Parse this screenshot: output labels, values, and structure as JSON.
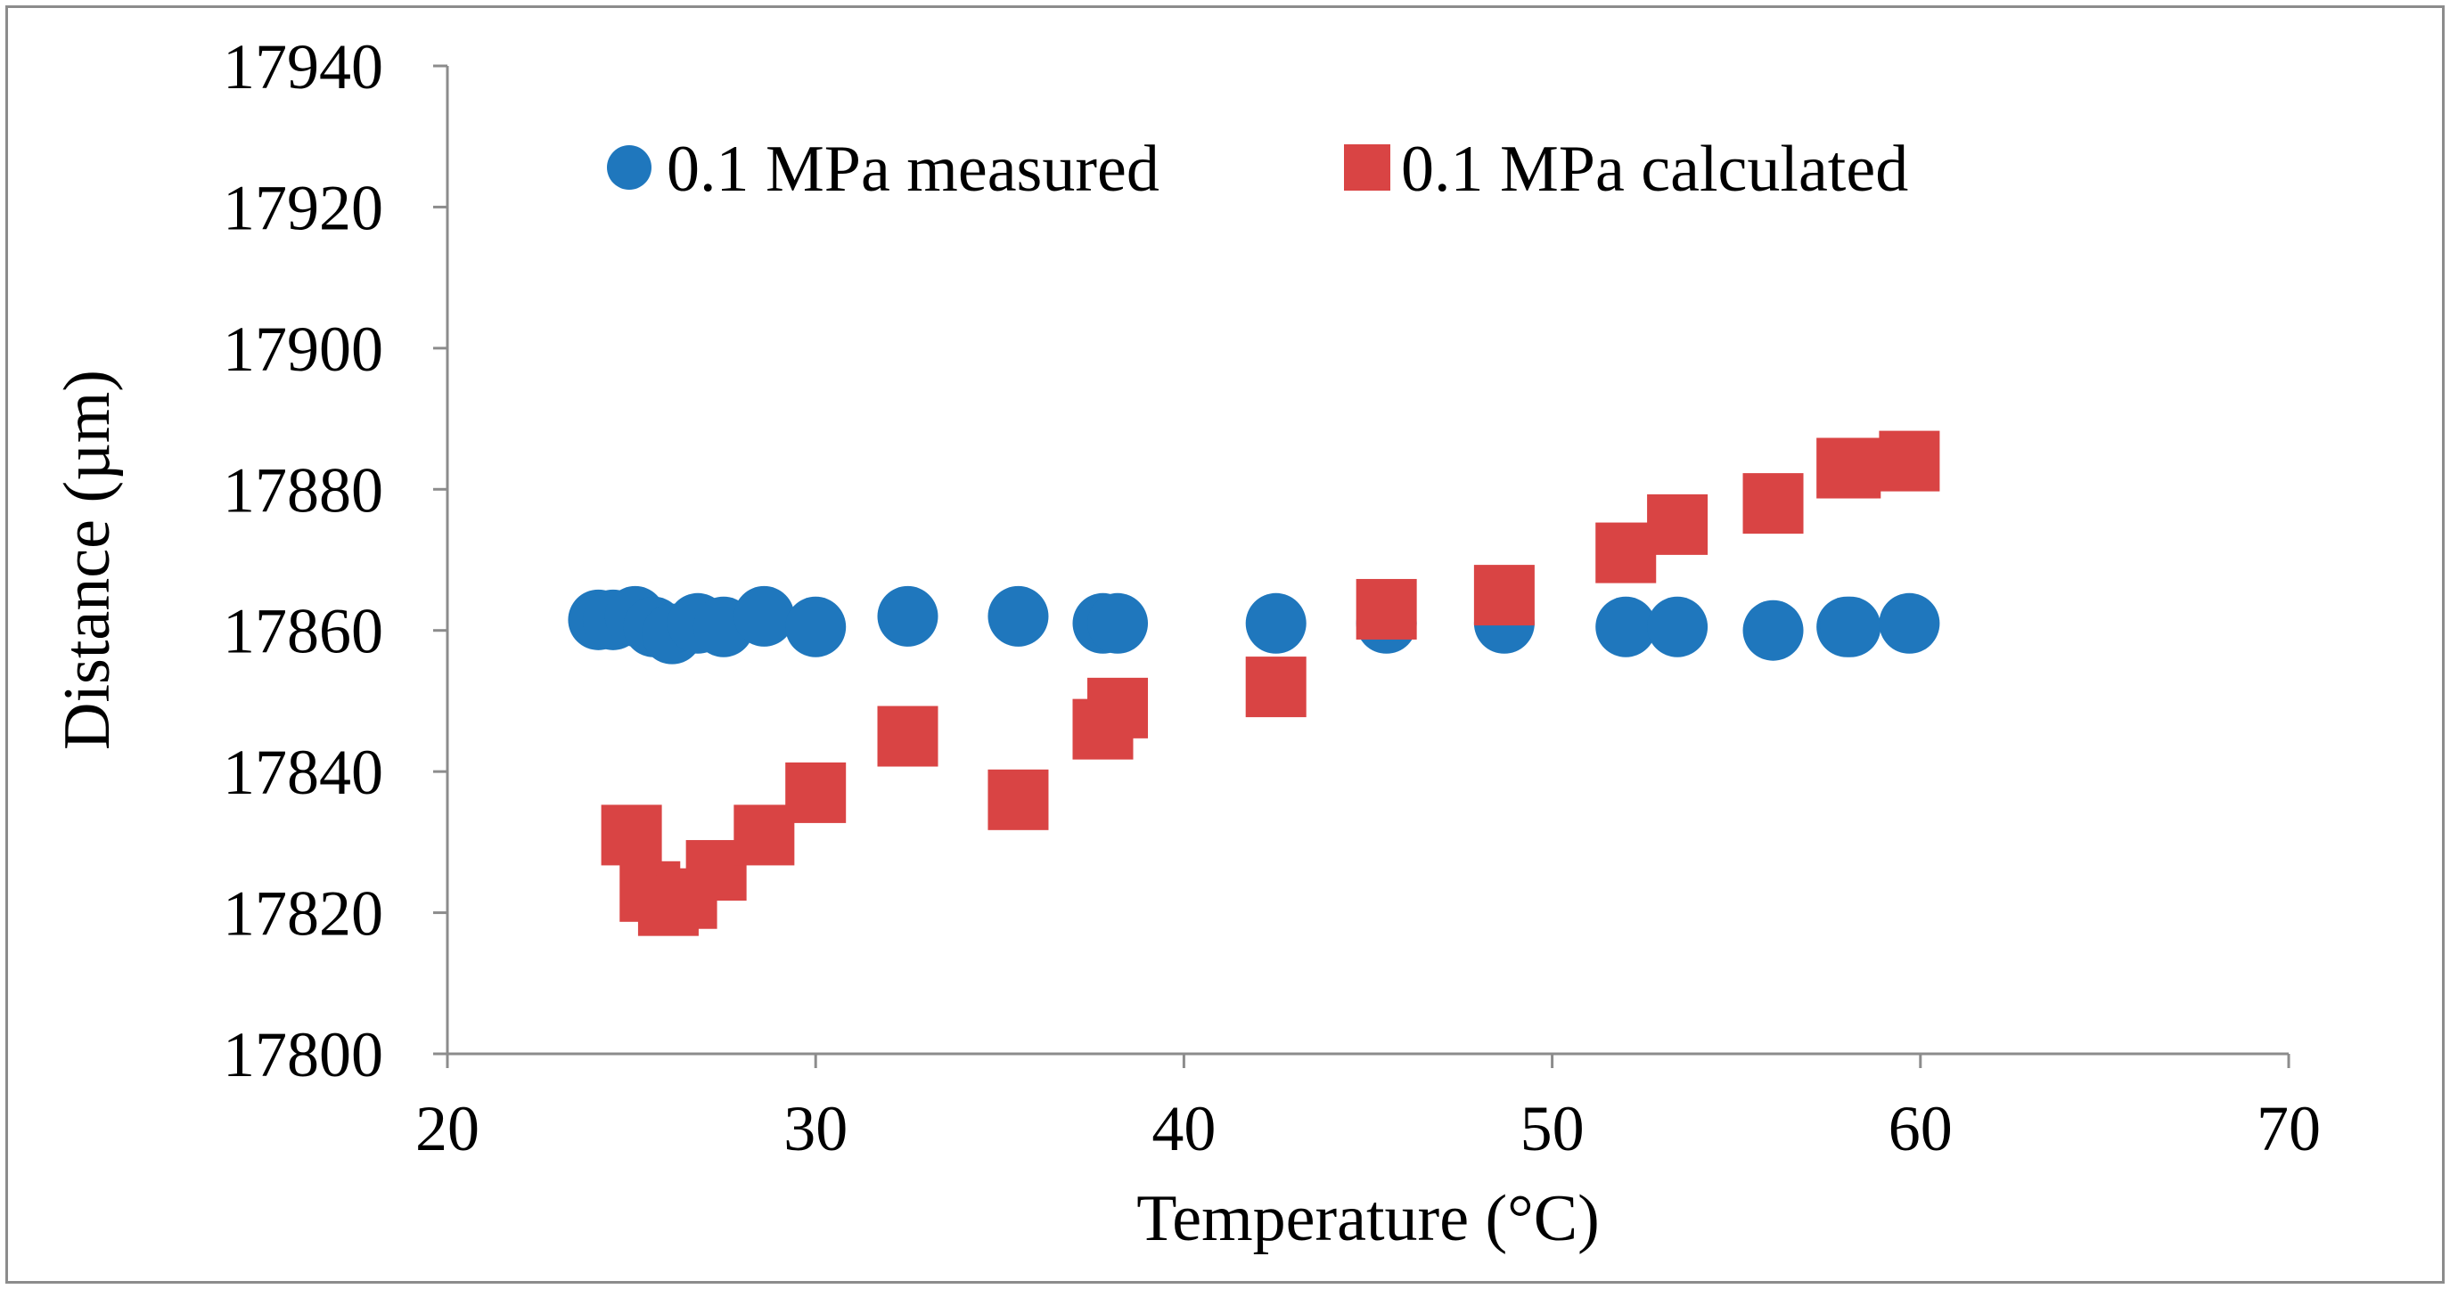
{
  "chart_data": {
    "type": "scatter",
    "title": "",
    "xlabel": "Temperature (°C)",
    "ylabel": "Distance (µm)",
    "xlim": [
      20,
      70
    ],
    "ylim": [
      17800,
      17940
    ],
    "xticks": [
      20,
      30,
      40,
      50,
      60,
      70
    ],
    "yticks": [
      17800,
      17820,
      17840,
      17860,
      17880,
      17900,
      17920,
      17940
    ],
    "grid": false,
    "legend_position": "top",
    "series": [
      {
        "name": "0.1 MPa measured",
        "marker": "circle",
        "color": "#1f77bd",
        "x": [
          24.1,
          24.5,
          25.1,
          25.6,
          26.1,
          26.8,
          27.5,
          28.6,
          30.0,
          32.5,
          35.5,
          37.8,
          38.2,
          42.5,
          45.5,
          48.7,
          52.0,
          53.4,
          56.0,
          58.0,
          58.1,
          59.7
        ],
        "y": [
          17861.5,
          17861.5,
          17862,
          17860.5,
          17859.5,
          17861,
          17860.5,
          17862,
          17860.5,
          17862,
          17862,
          17861,
          17861,
          17861,
          17861,
          17861,
          17860.5,
          17860.5,
          17860,
          17860.5,
          17860.5,
          17861
        ]
      },
      {
        "name": "0.1 MPa calculated",
        "marker": "square",
        "color": "#d94444",
        "x": [
          25.0,
          25.5,
          26.0,
          26.5,
          27.3,
          28.6,
          30.0,
          32.5,
          35.5,
          37.8,
          38.2,
          42.5,
          45.5,
          48.7,
          52.0,
          53.4,
          56.0,
          58.0,
          58.1,
          59.7
        ],
        "y": [
          17831,
          17823,
          17821,
          17822,
          17826,
          17831,
          17837,
          17845,
          17836,
          17846,
          17849,
          17852,
          17863,
          17865,
          17871,
          17875,
          17878,
          17883,
          17883,
          17884
        ]
      }
    ]
  }
}
